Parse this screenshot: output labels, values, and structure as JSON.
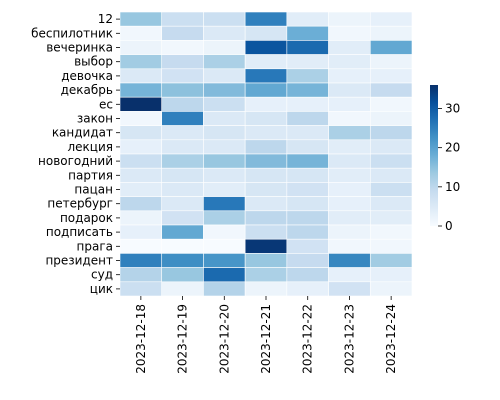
{
  "chart_data": {
    "type": "heatmap",
    "title": "",
    "xlabel": "",
    "ylabel": "",
    "x": [
      "2023-12-18",
      "2023-12-19",
      "2023-12-20",
      "2023-12-21",
      "2023-12-22",
      "2023-12-23",
      "2023-12-24"
    ],
    "y": [
      "12",
      "беспилотник",
      "вечеринка",
      "выбор",
      "девочка",
      "декабрь",
      "ес",
      "закон",
      "кандидат",
      "лекция",
      "новогодний",
      "партия",
      "пацан",
      "петербург",
      "подарок",
      "подписать",
      "прага",
      "президент",
      "суд",
      "цик"
    ],
    "values": [
      [
        14,
        8,
        8,
        25,
        4,
        2,
        3
      ],
      [
        1,
        9,
        5,
        6,
        18,
        1,
        2
      ],
      [
        2,
        1,
        2,
        31,
        28,
        4,
        19
      ],
      [
        13,
        9,
        12,
        4,
        4,
        4,
        2
      ],
      [
        5,
        7,
        5,
        26,
        12,
        3,
        3
      ],
      [
        17,
        15,
        16,
        19,
        17,
        5,
        9
      ],
      [
        36,
        10,
        8,
        3,
        3,
        3,
        1
      ],
      [
        1,
        25,
        5,
        6,
        10,
        1,
        2
      ],
      [
        6,
        5,
        6,
        5,
        5,
        12,
        10
      ],
      [
        3,
        5,
        5,
        10,
        6,
        4,
        5
      ],
      [
        8,
        12,
        14,
        16,
        17,
        5,
        8
      ],
      [
        5,
        6,
        5,
        6,
        6,
        4,
        5
      ],
      [
        4,
        5,
        4,
        6,
        7,
        3,
        8
      ],
      [
        10,
        5,
        26,
        5,
        6,
        3,
        5
      ],
      [
        2,
        7,
        12,
        10,
        10,
        4,
        4
      ],
      [
        3,
        19,
        1,
        8,
        10,
        2,
        1
      ],
      [
        0,
        0,
        0,
        35,
        7,
        1,
        1
      ],
      [
        25,
        23,
        22,
        14,
        9,
        24,
        13
      ],
      [
        11,
        14,
        28,
        12,
        10,
        3,
        3
      ],
      [
        8,
        2,
        11,
        2,
        3,
        7,
        2
      ]
    ],
    "colorbar": {
      "vmin": 0,
      "vmax": 36,
      "ticks": [
        0,
        10,
        20,
        30
      ],
      "colormap": "Blues",
      "colors": [
        "#f7fbff",
        "#deebf7",
        "#c6dbef",
        "#9ecae1",
        "#6baed6",
        "#4292c6",
        "#2171b5",
        "#08519c",
        "#08306b"
      ]
    },
    "grid": false
  }
}
